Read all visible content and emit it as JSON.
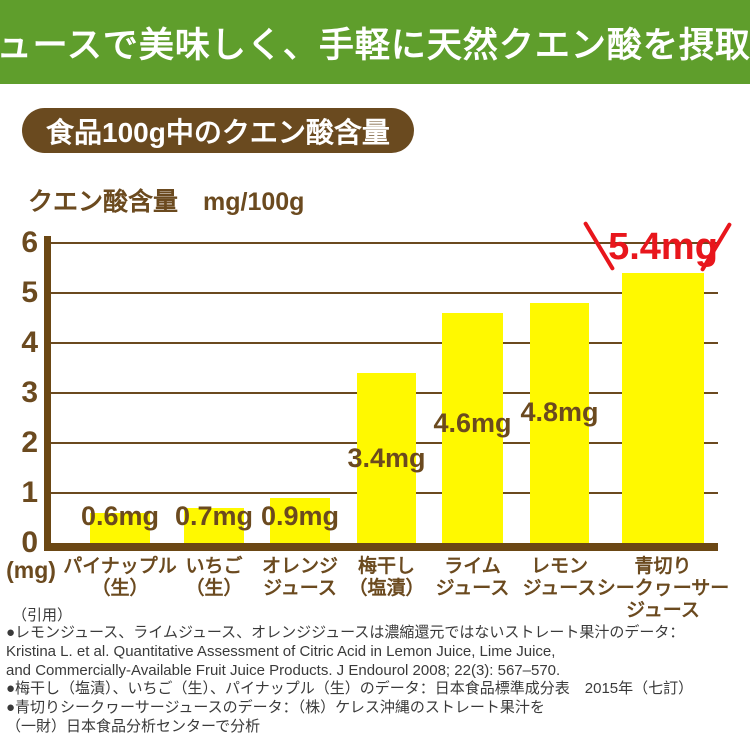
{
  "banner": {
    "title": "ジュースで美味しく、手軽に天然クエン酸を摂取！"
  },
  "badge": {
    "label": "食品100g中のクエン酸含量"
  },
  "chart_header": {
    "unit_label": "クエン酸含量　mg/100g"
  },
  "chart_data": {
    "type": "bar",
    "title": "食品100g中のクエン酸含量",
    "xlabel": "",
    "ylabel": "(mg)",
    "unit": "mg/100g",
    "ylim": [
      0,
      6
    ],
    "yticks": [
      0,
      1,
      2,
      3,
      4,
      5,
      6
    ],
    "grid": true,
    "categories": [
      "パイナップル\n（生）",
      "いちご\n（生）",
      "オレンジ\nジュース",
      "梅干し\n（塩漬）",
      "ライム\nジュース",
      "レモン\nジュース",
      "青切り\nシークヮーサー\nジュース"
    ],
    "values": [
      0.6,
      0.7,
      0.9,
      3.4,
      4.6,
      4.8,
      5.4
    ],
    "value_labels": [
      "0.6mg",
      "0.7mg",
      "0.9mg",
      "3.4mg",
      "4.6mg",
      "4.8mg",
      "5.4mg"
    ],
    "highlight_index": 6,
    "colors": {
      "bar": "#FFF900",
      "axis": "#6B4714",
      "grid": "#6B4A1F",
      "label": "#6B4A1F",
      "highlight": "#E8161C"
    }
  },
  "footer": {
    "citation_label": "（引用）",
    "lines": [
      "●レモンジュース、ライムジュース、オレンジジュースは濃縮還元ではないストレート果汁のデータ：",
      "Kristina L. et al. Quantitative Assessment of Citric Acid in Lemon Juice, Lime Juice,",
      "and Commercially-Available Fruit Juice Products.  J Endourol 2008; 22(3): 567–570.",
      "●梅干し（塩漬）、いちご（生）、パイナップル（生）のデータ：日本食品標準成分表　2015年（七訂）",
      "●青切りシークヮーサージュースのデータ：（株）ケレス沖縄のストレート果汁を",
      "（一財）日本食品分析センターで分析"
    ]
  },
  "colors": {
    "banner_green": "#5F9E2C",
    "badge_brown": "#6A4A1F",
    "text_brown": "#6B4A1F",
    "bar_yellow": "#FFF900",
    "highlight_red": "#E8161C",
    "footer_text": "#3A3A3A",
    "background": "#FFFFFF"
  }
}
